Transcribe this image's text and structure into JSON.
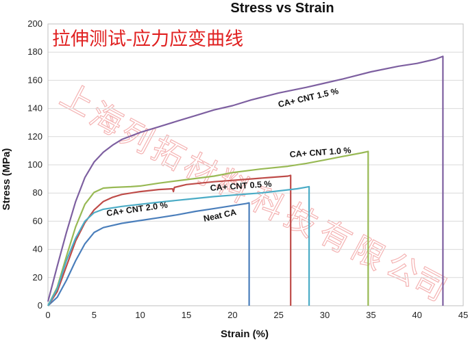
{
  "chart_data": {
    "type": "line",
    "title": "Stress vs Strain",
    "xlabel": "Strain (%)",
    "ylabel": "Stress (MPa)",
    "xlim": [
      0,
      45
    ],
    "ylim": [
      0,
      200
    ],
    "x_ticks": [
      0,
      5,
      10,
      15,
      20,
      25,
      30,
      35,
      40,
      45
    ],
    "y_ticks": [
      0,
      20,
      40,
      60,
      80,
      100,
      120,
      140,
      160,
      180,
      200
    ],
    "grid": true,
    "legend": "inline labels",
    "series": [
      {
        "name": "Neat CA",
        "color": "#4a7ebb",
        "points": [
          [
            0,
            0
          ],
          [
            1,
            6
          ],
          [
            2,
            18
          ],
          [
            3,
            32
          ],
          [
            4,
            44
          ],
          [
            5,
            52
          ],
          [
            6,
            55.5
          ],
          [
            7,
            57
          ],
          [
            8,
            58.5
          ],
          [
            10,
            60.5
          ],
          [
            12,
            62.5
          ],
          [
            14,
            64.5
          ],
          [
            16,
            67
          ],
          [
            18,
            69
          ],
          [
            20,
            71
          ],
          [
            21.5,
            72.5
          ],
          [
            21.8,
            73
          ],
          [
            21.8,
            0
          ]
        ]
      },
      {
        "name": "CA+ CNT 0.5 %",
        "color": "#be4b48",
        "points": [
          [
            0,
            0
          ],
          [
            1,
            10
          ],
          [
            2,
            28
          ],
          [
            3,
            46
          ],
          [
            4,
            59
          ],
          [
            5,
            68
          ],
          [
            6,
            74
          ],
          [
            7,
            77
          ],
          [
            8,
            79
          ],
          [
            10,
            81
          ],
          [
            12,
            82.5
          ],
          [
            13.5,
            83
          ],
          [
            13.6,
            81
          ],
          [
            13.7,
            84
          ],
          [
            15,
            86
          ],
          [
            18,
            88
          ],
          [
            20,
            89
          ],
          [
            22,
            90
          ],
          [
            24,
            91
          ],
          [
            26,
            92
          ],
          [
            26.3,
            92.5
          ],
          [
            26.3,
            0
          ]
        ]
      },
      {
        "name": "CA+ CNT 1.0 %",
        "color": "#98b954",
        "points": [
          [
            0,
            0
          ],
          [
            1,
            13
          ],
          [
            2,
            35
          ],
          [
            3,
            56
          ],
          [
            4,
            72
          ],
          [
            5,
            80.5
          ],
          [
            6,
            83.5
          ],
          [
            7,
            84
          ],
          [
            9,
            84.5
          ],
          [
            10,
            85
          ],
          [
            12,
            87
          ],
          [
            15,
            89.5
          ],
          [
            18,
            92
          ],
          [
            20,
            94.5
          ],
          [
            23,
            97
          ],
          [
            26,
            99
          ],
          [
            28,
            101
          ],
          [
            30,
            103.5
          ],
          [
            32,
            106
          ],
          [
            34,
            108.5
          ],
          [
            34.7,
            109.5
          ],
          [
            34.7,
            0
          ]
        ]
      },
      {
        "name": "CA+ CNT 1.5 %",
        "color": "#7d5fa0",
        "points": [
          [
            0,
            3
          ],
          [
            1,
            28
          ],
          [
            2,
            52
          ],
          [
            3,
            74
          ],
          [
            4,
            91
          ],
          [
            5,
            102
          ],
          [
            6,
            109
          ],
          [
            7,
            114
          ],
          [
            8,
            118
          ],
          [
            10,
            123
          ],
          [
            12,
            127
          ],
          [
            14,
            131
          ],
          [
            16,
            135
          ],
          [
            18,
            139
          ],
          [
            20,
            142
          ],
          [
            22,
            146
          ],
          [
            25,
            151
          ],
          [
            28,
            155
          ],
          [
            30,
            158
          ],
          [
            32,
            161
          ],
          [
            35,
            166
          ],
          [
            38,
            170
          ],
          [
            40,
            172
          ],
          [
            42,
            175
          ],
          [
            42.8,
            177
          ],
          [
            42.8,
            0
          ]
        ]
      },
      {
        "name": "CA+ CNT 2.0 %",
        "color": "#4bacc6",
        "points": [
          [
            0,
            0
          ],
          [
            1,
            12
          ],
          [
            2,
            32
          ],
          [
            3,
            48
          ],
          [
            4,
            60
          ],
          [
            5,
            66
          ],
          [
            6,
            68.5
          ],
          [
            8,
            70.5
          ],
          [
            10,
            72
          ],
          [
            12,
            73.5
          ],
          [
            15,
            75.5
          ],
          [
            18,
            77.5
          ],
          [
            20,
            78.5
          ],
          [
            23,
            80
          ],
          [
            25,
            81.5
          ],
          [
            27,
            83
          ],
          [
            28.3,
            84.5
          ],
          [
            28.3,
            0
          ]
        ]
      }
    ],
    "annotations": [
      "拉伸测试-应力应变曲线"
    ],
    "watermark": "上海列拓材料科技有限公司"
  }
}
